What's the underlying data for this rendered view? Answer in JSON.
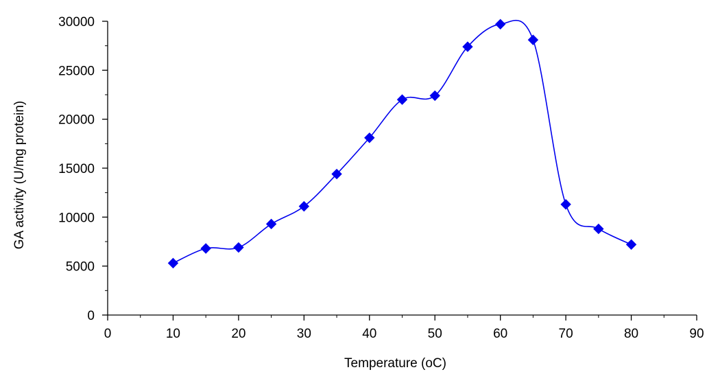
{
  "chart_data": {
    "type": "line",
    "title": "",
    "xlabel": "Temperature (oC)",
    "ylabel": "GA activity (U/mg protein)",
    "xlim": [
      0,
      90
    ],
    "ylim": [
      0,
      30000
    ],
    "x_ticks": [
      0,
      10,
      20,
      30,
      40,
      50,
      60,
      70,
      80,
      90
    ],
    "x_tick_labels": [
      "0",
      "10",
      "20",
      "30",
      "40",
      "50",
      "60",
      "70",
      "80",
      "90"
    ],
    "y_ticks": [
      0,
      5000,
      10000,
      15000,
      20000,
      25000,
      30000
    ],
    "y_tick_labels": [
      "0",
      "5000",
      "10000",
      "15000",
      "20000",
      "25000",
      "30000"
    ],
    "grid": false,
    "smooth": true,
    "series": [
      {
        "color": "#0000ee",
        "marker": "diamond",
        "x": [
          10,
          15,
          20,
          25,
          30,
          35,
          40,
          45,
          50,
          55,
          60,
          65,
          70,
          75,
          80
        ],
        "y": [
          5300,
          6800,
          6900,
          9300,
          11100,
          14400,
          18100,
          22000,
          22400,
          27400,
          29700,
          28100,
          11300,
          8800,
          7200
        ]
      }
    ]
  }
}
